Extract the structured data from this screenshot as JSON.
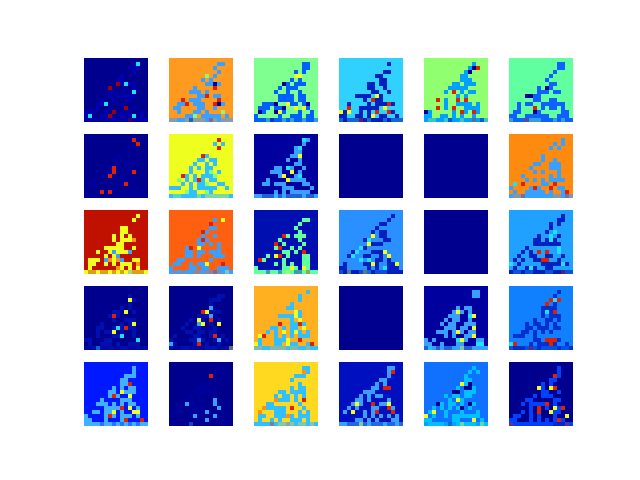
{
  "figure": {
    "description_kind": "feature-map-grid",
    "rows": 5,
    "cols": 6,
    "colormap": "jet",
    "palette": {
      "dark_blue": "#00008f",
      "blue": "#0010ff",
      "light_blue": "#3aa0ff",
      "cyan": "#20e0ff",
      "green": "#7fff7f",
      "yellow": "#f0ff20",
      "orange": "#ff9010",
      "red": "#e02000",
      "dark_red": "#a00000"
    },
    "tiles": [
      {
        "bg": "#00008f",
        "fg": "#0000b0",
        "spots": [
          "#a00000",
          "#20e0ff"
        ]
      },
      {
        "bg": "#ff9a20",
        "fg": "#3aa0ff",
        "spots": [
          "#e02000",
          "#00008f",
          "#7fff7f"
        ]
      },
      {
        "bg": "#7fff8f",
        "fg": "#0060ff",
        "spots": [
          "#00008f",
          "#f0ff20"
        ]
      },
      {
        "bg": "#30d0ff",
        "fg": "#0020c0",
        "spots": [
          "#e02000",
          "#f0ff20"
        ]
      },
      {
        "bg": "#90ff70",
        "fg": "#00a0ff",
        "spots": [
          "#e02000",
          "#00008f"
        ]
      },
      {
        "bg": "#60ffa0",
        "fg": "#1060ff",
        "spots": [
          "#00008f",
          "#e02000"
        ]
      },
      {
        "bg": "#00008f",
        "fg": "#00009a",
        "spots": [
          "#e02000"
        ]
      },
      {
        "bg": "#eeff20",
        "fg": "#30c0ff",
        "spots": [
          "#e02000",
          "#7fff7f"
        ]
      },
      {
        "bg": "#00009f",
        "fg": "#3aa0ff",
        "spots": [
          "#f0ff20",
          "#20e0ff"
        ]
      },
      {
        "bg": "#00008f",
        "fg": "#00008f",
        "spots": []
      },
      {
        "bg": "#00008f",
        "fg": "#00008f",
        "spots": []
      },
      {
        "bg": "#ff8a10",
        "fg": "#3aa0ff",
        "spots": [
          "#e02000",
          "#20e0ff"
        ]
      },
      {
        "bg": "#c01000",
        "fg": "#f0ff20",
        "spots": [
          "#3aa0ff",
          "#ff9010"
        ]
      },
      {
        "bg": "#ff6010",
        "fg": "#3aa0ff",
        "spots": [
          "#f0ff20",
          "#e02000"
        ]
      },
      {
        "bg": "#0010b0",
        "fg": "#60ffa0",
        "spots": [
          "#f0ff20",
          "#e02000"
        ]
      },
      {
        "bg": "#2a90ff",
        "fg": "#0020c0",
        "spots": [
          "#20e0ff",
          "#f0ff20"
        ]
      },
      {
        "bg": "#00008f",
        "fg": "#00008f",
        "spots": []
      },
      {
        "bg": "#20a0ff",
        "fg": "#0020c0",
        "spots": [
          "#20e0ff",
          "#e02000"
        ]
      },
      {
        "bg": "#00008f",
        "fg": "#0010b0",
        "spots": [
          "#f0ff20",
          "#e02000",
          "#20e0ff"
        ]
      },
      {
        "bg": "#00008f",
        "fg": "#0010b0",
        "spots": [
          "#f0ff20",
          "#e02000",
          "#3aa0ff"
        ]
      },
      {
        "bg": "#ffb020",
        "fg": "#30c0ff",
        "spots": [
          "#e02000",
          "#f0ff20"
        ]
      },
      {
        "bg": "#00008f",
        "fg": "#00008f",
        "spots": []
      },
      {
        "bg": "#00009f",
        "fg": "#3aa0ff",
        "spots": [
          "#20e0ff",
          "#f0ff20"
        ]
      },
      {
        "bg": "#1080ff",
        "fg": "#0030d0",
        "spots": [
          "#20e0ff",
          "#e02000"
        ]
      },
      {
        "bg": "#0018ff",
        "fg": "#40b0ff",
        "spots": [
          "#f0ff20",
          "#e02000"
        ]
      },
      {
        "bg": "#00008f",
        "fg": "#00009a",
        "spots": [
          "#e02000",
          "#3aa0ff"
        ]
      },
      {
        "bg": "#ffd820",
        "fg": "#30c0ff",
        "spots": [
          "#e02000",
          "#ff9010"
        ]
      },
      {
        "bg": "#0010c0",
        "fg": "#3aa0ff",
        "spots": [
          "#f0ff20",
          "#e02000"
        ]
      },
      {
        "bg": "#1070ff",
        "fg": "#00c0ff",
        "spots": [
          "#f0ff20",
          "#00008f"
        ]
      },
      {
        "bg": "#00008f",
        "fg": "#0040ff",
        "spots": [
          "#f0ff20",
          "#e02000"
        ]
      }
    ]
  }
}
